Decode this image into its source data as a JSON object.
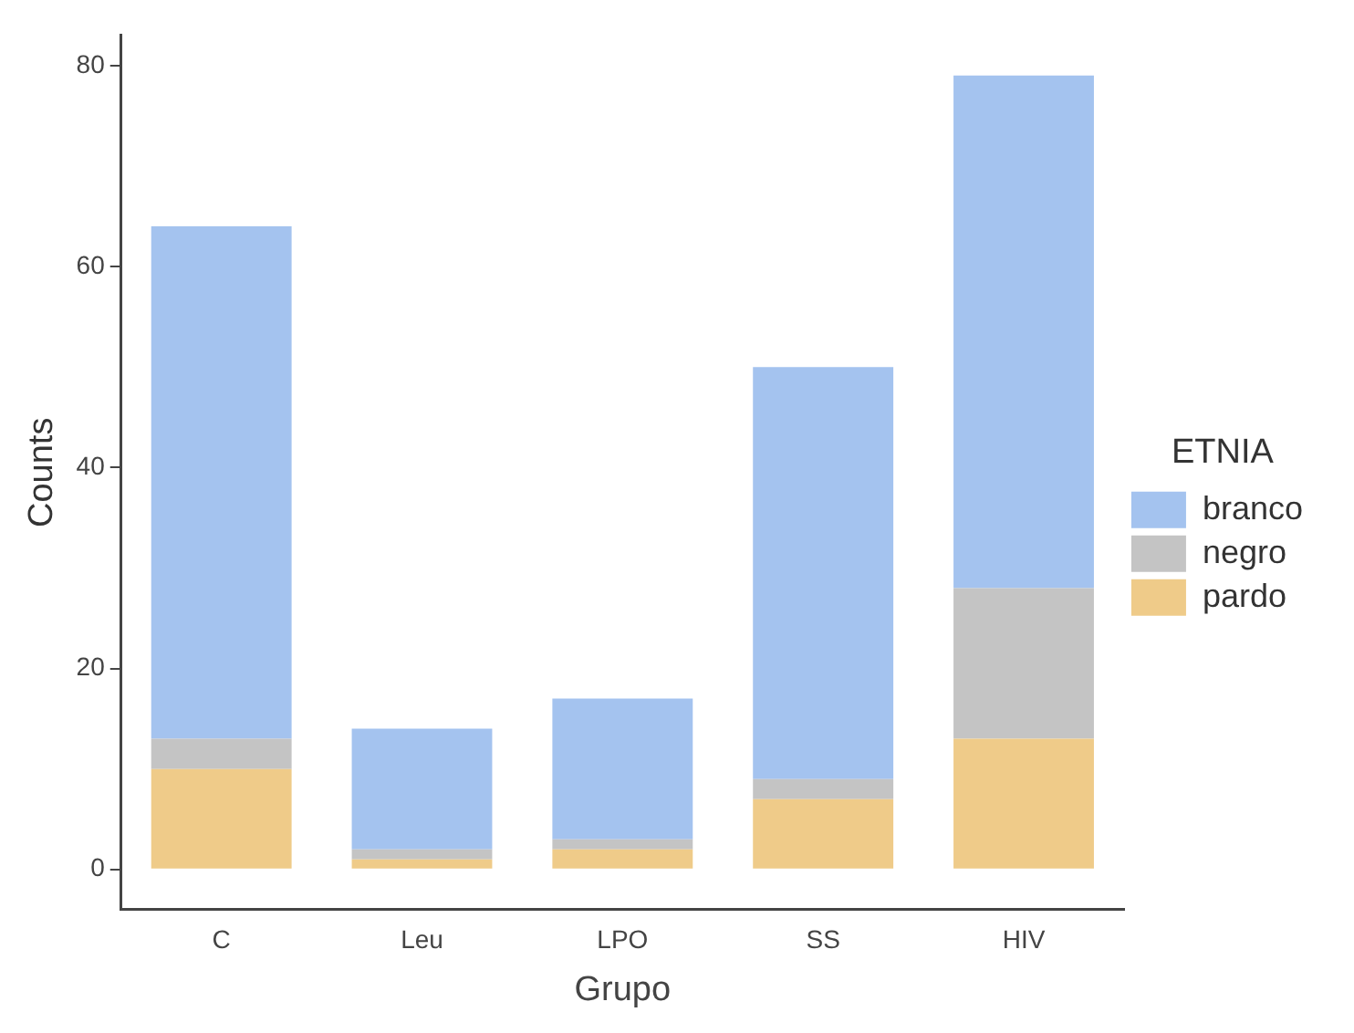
{
  "chart_data": {
    "type": "bar",
    "stacked": true,
    "xlabel": "Grupo",
    "ylabel": "Counts",
    "legend_title": "ETNIA",
    "legend": "right",
    "categories": [
      "C",
      "Leu",
      "LPO",
      "SS",
      "HIV"
    ],
    "series": [
      {
        "name": "pardo",
        "color": "#efcb89",
        "values": [
          10,
          1,
          2,
          7,
          13
        ]
      },
      {
        "name": "negro",
        "color": "#c4c4c4",
        "values": [
          3,
          1,
          1,
          2,
          15
        ]
      },
      {
        "name": "branco",
        "color": "#a4c3ef",
        "values": [
          51,
          12,
          14,
          41,
          51
        ]
      }
    ],
    "ylim": [
      -4,
      83
    ],
    "yticks": [
      0,
      20,
      40,
      60,
      80
    ],
    "grid": false
  }
}
